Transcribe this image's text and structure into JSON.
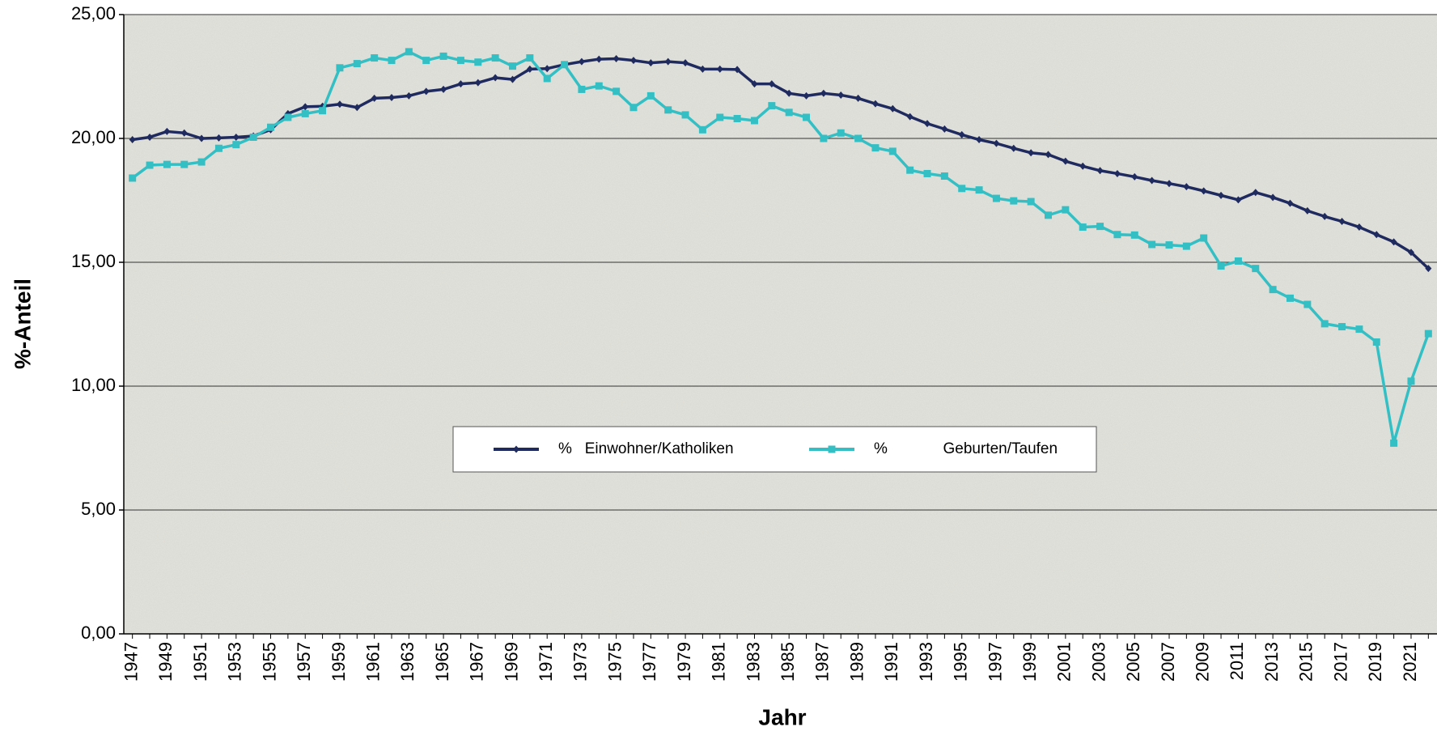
{
  "chart_data": {
    "type": "line",
    "x_label": "Jahr",
    "y_label": "%-Anteil",
    "categories": [
      "1947",
      null,
      "1949",
      null,
      "1951",
      null,
      "1953",
      null,
      "1955",
      null,
      "1957",
      null,
      "1959",
      null,
      "1961",
      null,
      "1963",
      null,
      "1965",
      null,
      "1967",
      null,
      "1969",
      null,
      "1971",
      null,
      "1973",
      null,
      "1975",
      null,
      "1977",
      null,
      "1979",
      null,
      "1981",
      null,
      "1983",
      null,
      "1985",
      null,
      "1987",
      null,
      "1989",
      null,
      "1991",
      null,
      "1993",
      null,
      "1995",
      null,
      "1997",
      null,
      "1999",
      null,
      "2001",
      null,
      "2003",
      null,
      "2005",
      null,
      "2007",
      null,
      "2009",
      null,
      "2011",
      null,
      "2013",
      null,
      "2015",
      null,
      "2017",
      null,
      "2019",
      null,
      "2021",
      null
    ],
    "series": [
      {
        "name": "%   Einwohner/Katholiken",
        "color": "#1f2a5e",
        "marker": "diamond",
        "values": [
          19.95,
          20.05,
          20.28,
          20.22,
          20.0,
          20.02,
          20.05,
          20.1,
          20.35,
          21.0,
          21.28,
          21.3,
          21.38,
          21.25,
          21.62,
          21.65,
          21.72,
          21.9,
          21.98,
          22.2,
          22.25,
          22.45,
          22.38,
          22.8,
          22.82,
          22.98,
          23.1,
          23.2,
          23.22,
          23.15,
          23.05,
          23.1,
          23.05,
          22.8,
          22.8,
          22.78,
          22.2,
          22.2,
          21.82,
          21.72,
          21.82,
          21.75,
          21.62,
          21.4,
          21.2,
          20.88,
          20.6,
          20.38,
          20.15,
          19.95,
          19.8,
          19.6,
          19.42,
          19.35,
          19.08,
          18.88,
          18.7,
          18.58,
          18.45,
          18.3,
          18.18,
          18.05,
          17.88,
          17.7,
          17.52,
          17.82,
          17.62,
          17.38,
          17.08,
          16.85,
          16.65,
          16.42,
          16.12,
          15.82,
          15.4,
          14.75
        ]
      },
      {
        "name": "%             Geburten/Taufen",
        "color": "#33bfc4",
        "marker": "square",
        "values": [
          18.4,
          18.92,
          18.95,
          18.95,
          19.05,
          19.6,
          19.75,
          20.05,
          20.45,
          20.85,
          21.0,
          21.12,
          22.85,
          23.02,
          23.25,
          23.15,
          23.5,
          23.15,
          23.32,
          23.15,
          23.08,
          23.25,
          22.92,
          23.25,
          22.42,
          22.98,
          21.98,
          22.12,
          21.9,
          21.25,
          21.72,
          21.15,
          20.95,
          20.35,
          20.85,
          20.8,
          20.72,
          21.32,
          21.05,
          20.85,
          20.0,
          20.22,
          20.0,
          19.62,
          19.48,
          18.72,
          18.58,
          18.48,
          17.98,
          17.92,
          17.58,
          17.48,
          17.45,
          16.9,
          17.12,
          16.42,
          16.45,
          16.12,
          16.1,
          15.72,
          15.7,
          15.65,
          15.98,
          14.85,
          15.05,
          14.75,
          13.9,
          13.55,
          13.3,
          12.52,
          12.4,
          12.3,
          11.78,
          7.7,
          10.2,
          12.12
        ]
      }
    ],
    "ylim": [
      0,
      25
    ],
    "yticks": [
      {
        "value": 0,
        "label": "0,00"
      },
      {
        "value": 5,
        "label": "5,00"
      },
      {
        "value": 10,
        "label": "10,00"
      },
      {
        "value": 15,
        "label": "15,00"
      },
      {
        "value": 20,
        "label": "20,00"
      },
      {
        "value": 25,
        "label": "25,00"
      }
    ],
    "grid": true,
    "legend": "center"
  }
}
